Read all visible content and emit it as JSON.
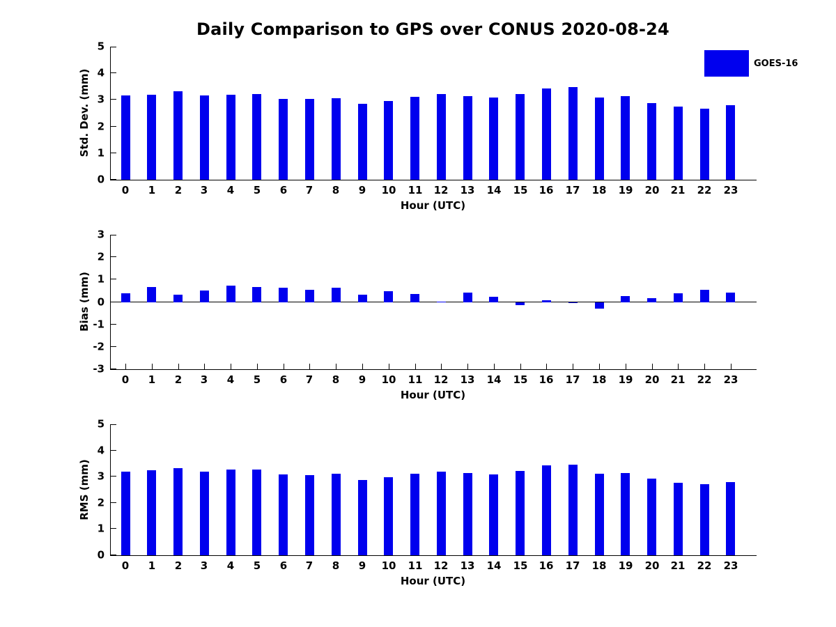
{
  "title": "Daily Comparison to GPS over CONUS 2020-08-24",
  "legend": {
    "label": "GOES-16",
    "color": "#0000ee"
  },
  "chart_data": [
    {
      "type": "bar",
      "series_name": "GOES-16",
      "bar_color": "#0000ee",
      "ylabel": "Std. Dev. (mm)",
      "xlabel": "Hour (UTC)",
      "ylim": [
        0,
        5
      ],
      "yticks": [
        0,
        1,
        2,
        3,
        4,
        5
      ],
      "grid": false,
      "legend_position": "upper-right-outside",
      "categories": [
        0,
        1,
        2,
        3,
        4,
        5,
        6,
        7,
        8,
        9,
        10,
        11,
        12,
        13,
        14,
        15,
        16,
        17,
        18,
        19,
        20,
        21,
        22,
        23
      ],
      "values": [
        3.17,
        3.2,
        3.32,
        3.17,
        3.2,
        3.22,
        3.04,
        3.04,
        3.07,
        2.85,
        2.95,
        3.11,
        3.21,
        3.13,
        3.08,
        3.21,
        3.42,
        3.47,
        3.1,
        3.15,
        2.89,
        2.74,
        2.66,
        2.79
      ]
    },
    {
      "type": "bar",
      "series_name": "GOES-16",
      "bar_color": "#0000ee",
      "ylabel": "Bias (mm)",
      "xlabel": "Hour (UTC)",
      "ylim": [
        -3,
        3
      ],
      "yticks": [
        -3,
        -2,
        -1,
        0,
        1,
        2,
        3
      ],
      "grid": false,
      "categories": [
        0,
        1,
        2,
        3,
        4,
        5,
        6,
        7,
        8,
        9,
        10,
        11,
        12,
        13,
        14,
        15,
        16,
        17,
        18,
        19,
        20,
        21,
        22,
        23
      ],
      "values": [
        0.4,
        0.67,
        0.34,
        0.52,
        0.76,
        0.68,
        0.65,
        0.56,
        0.65,
        0.33,
        0.5,
        0.36,
        0.02,
        0.42,
        0.24,
        -0.11,
        0.09,
        -0.02,
        -0.28,
        0.28,
        0.2,
        0.41,
        0.57,
        0.45
      ]
    },
    {
      "type": "bar",
      "series_name": "GOES-16",
      "bar_color": "#0000ee",
      "ylabel": "RMS (mm)",
      "xlabel": "Hour (UTC)",
      "ylim": [
        0,
        5
      ],
      "yticks": [
        0,
        1,
        2,
        3,
        4,
        5
      ],
      "grid": false,
      "categories": [
        0,
        1,
        2,
        3,
        4,
        5,
        6,
        7,
        8,
        9,
        10,
        11,
        12,
        13,
        14,
        15,
        16,
        17,
        18,
        19,
        20,
        21,
        22,
        23
      ],
      "values": [
        3.18,
        3.24,
        3.32,
        3.2,
        3.27,
        3.27,
        3.09,
        3.06,
        3.12,
        2.86,
        2.98,
        3.12,
        3.2,
        3.14,
        3.09,
        3.22,
        3.42,
        3.47,
        3.11,
        3.14,
        2.92,
        2.76,
        2.72,
        2.79
      ]
    }
  ]
}
